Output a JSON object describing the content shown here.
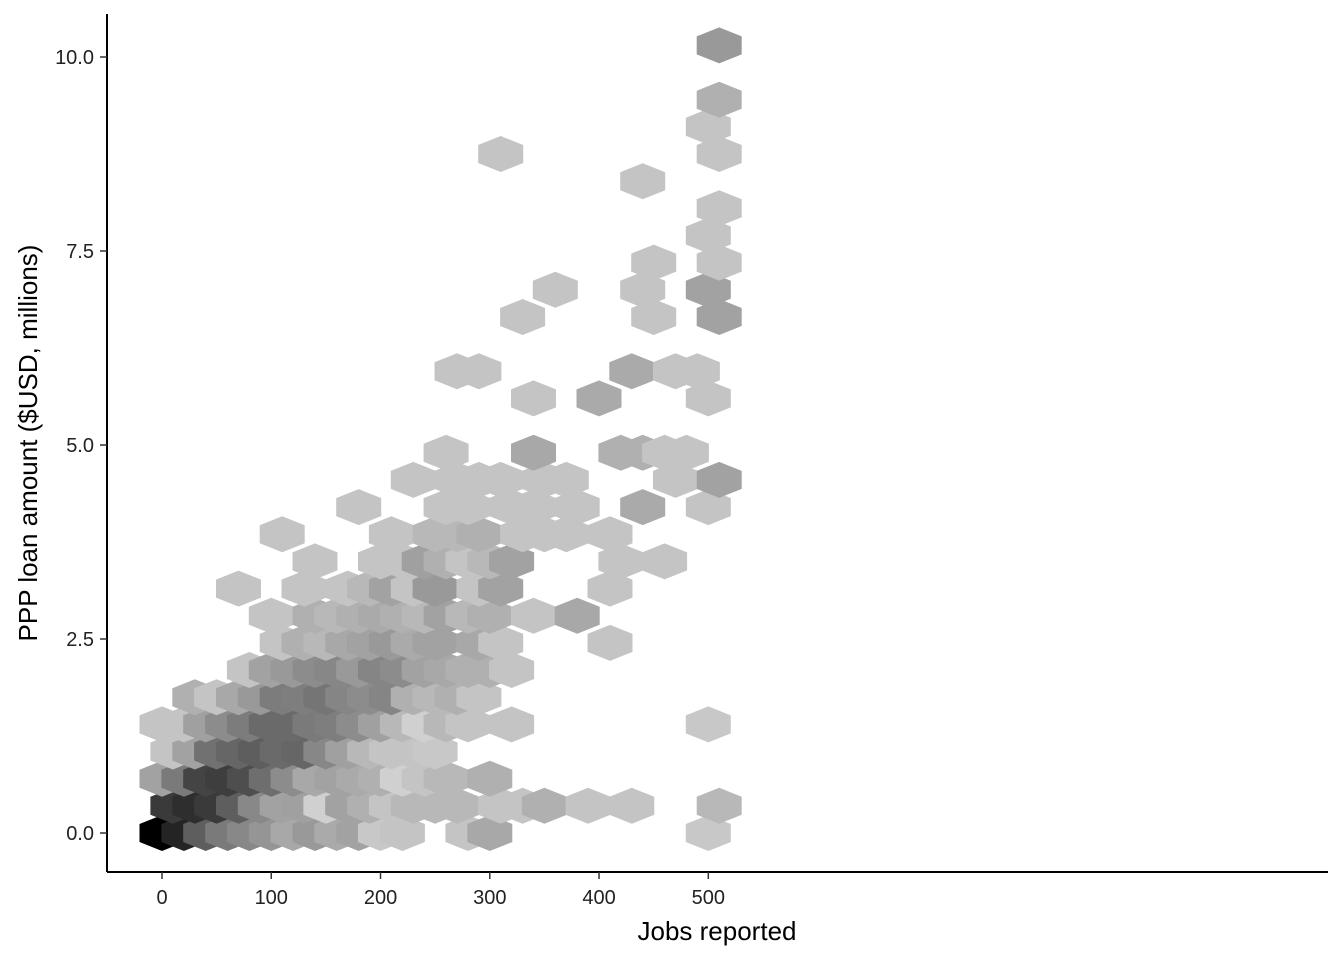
{
  "chart_data": {
    "type": "heatmap",
    "subtype": "hexbin",
    "title": "",
    "xlabel": "Jobs reported",
    "ylabel": "PPP loan amount ($USD, millions)",
    "xlim": [
      -25,
      535
    ],
    "ylim": [
      -0.5,
      10.6
    ],
    "x_ticks": [
      0,
      100,
      200,
      300,
      400,
      500
    ],
    "x_tick_labels": [
      "0",
      "100",
      "200",
      "300",
      "400",
      "500"
    ],
    "y_ticks": [
      0,
      2.5,
      5,
      7.5,
      10
    ],
    "y_tick_labels": [
      "0.0",
      "2.5",
      "5.0",
      "7.5",
      "10.0"
    ],
    "grid": false,
    "legend": "none",
    "color_scale": [
      "#c4c4c4",
      "#000000"
    ],
    "bins": [
      {
        "x": 0,
        "y": 0.0,
        "gray": "#000000"
      },
      {
        "x": 20,
        "y": 0.0,
        "gray": "#242424"
      },
      {
        "x": 40,
        "y": 0.0,
        "gray": "#5e5e5e"
      },
      {
        "x": 60,
        "y": 0.0,
        "gray": "#7a7a7a"
      },
      {
        "x": 80,
        "y": 0.0,
        "gray": "#888888"
      },
      {
        "x": 100,
        "y": 0.0,
        "gray": "#959595"
      },
      {
        "x": 120,
        "y": 0.0,
        "gray": "#a8a8a8"
      },
      {
        "x": 140,
        "y": 0.0,
        "gray": "#999999"
      },
      {
        "x": 160,
        "y": 0.0,
        "gray": "#aaaaaa"
      },
      {
        "x": 180,
        "y": 0.0,
        "gray": "#a2a2a2"
      },
      {
        "x": 200,
        "y": 0.0,
        "gray": "#c8c8c8"
      },
      {
        "x": 220,
        "y": 0.0,
        "gray": "#c4c4c4"
      },
      {
        "x": 280,
        "y": 0.0,
        "gray": "#c4c4c4"
      },
      {
        "x": 300,
        "y": 0.0,
        "gray": "#a8a8a8"
      },
      {
        "x": 500,
        "y": 0.0,
        "gray": "#c8c8c8"
      },
      {
        "x": 10,
        "y": 0.35,
        "gray": "#3a3a3a"
      },
      {
        "x": 30,
        "y": 0.35,
        "gray": "#2e2e2e"
      },
      {
        "x": 50,
        "y": 0.35,
        "gray": "#3a3a3a"
      },
      {
        "x": 70,
        "y": 0.35,
        "gray": "#5e5e5e"
      },
      {
        "x": 90,
        "y": 0.35,
        "gray": "#888888"
      },
      {
        "x": 110,
        "y": 0.35,
        "gray": "#a2a2a2"
      },
      {
        "x": 130,
        "y": 0.35,
        "gray": "#a0a0a0"
      },
      {
        "x": 150,
        "y": 0.35,
        "gray": "#d0d0d0"
      },
      {
        "x": 170,
        "y": 0.35,
        "gray": "#a2a2a2"
      },
      {
        "x": 190,
        "y": 0.35,
        "gray": "#b0b0b0"
      },
      {
        "x": 210,
        "y": 0.35,
        "gray": "#c4c4c4"
      },
      {
        "x": 230,
        "y": 0.35,
        "gray": "#b8b8b8"
      },
      {
        "x": 250,
        "y": 0.35,
        "gray": "#b8b8b8"
      },
      {
        "x": 270,
        "y": 0.35,
        "gray": "#b8b8b8"
      },
      {
        "x": 310,
        "y": 0.35,
        "gray": "#c4c4c4"
      },
      {
        "x": 330,
        "y": 0.35,
        "gray": "#c4c4c4"
      },
      {
        "x": 350,
        "y": 0.35,
        "gray": "#b0b0b0"
      },
      {
        "x": 390,
        "y": 0.35,
        "gray": "#c4c4c4"
      },
      {
        "x": 430,
        "y": 0.35,
        "gray": "#c4c4c4"
      },
      {
        "x": 510,
        "y": 0.35,
        "gray": "#b8b8b8"
      },
      {
        "x": 0,
        "y": 0.7,
        "gray": "#a2a2a2"
      },
      {
        "x": 20,
        "y": 0.7,
        "gray": "#7a7a7a"
      },
      {
        "x": 40,
        "y": 0.7,
        "gray": "#444444"
      },
      {
        "x": 60,
        "y": 0.7,
        "gray": "#3e3e3e"
      },
      {
        "x": 80,
        "y": 0.7,
        "gray": "#4e4e4e"
      },
      {
        "x": 100,
        "y": 0.7,
        "gray": "#6e6e6e"
      },
      {
        "x": 120,
        "y": 0.7,
        "gray": "#8c8c8c"
      },
      {
        "x": 140,
        "y": 0.7,
        "gray": "#a8a8a8"
      },
      {
        "x": 160,
        "y": 0.7,
        "gray": "#a2a2a2"
      },
      {
        "x": 180,
        "y": 0.7,
        "gray": "#aaaaaa"
      },
      {
        "x": 200,
        "y": 0.7,
        "gray": "#b0b0b0"
      },
      {
        "x": 220,
        "y": 0.7,
        "gray": "#d0d0d0"
      },
      {
        "x": 240,
        "y": 0.7,
        "gray": "#c4c4c4"
      },
      {
        "x": 260,
        "y": 0.7,
        "gray": "#b8b8b8"
      },
      {
        "x": 300,
        "y": 0.7,
        "gray": "#b0b0b0"
      },
      {
        "x": 10,
        "y": 1.05,
        "gray": "#c4c4c4"
      },
      {
        "x": 30,
        "y": 1.05,
        "gray": "#a2a2a2"
      },
      {
        "x": 50,
        "y": 1.05,
        "gray": "#717171"
      },
      {
        "x": 70,
        "y": 1.05,
        "gray": "#666666"
      },
      {
        "x": 90,
        "y": 1.05,
        "gray": "#5e5e5e"
      },
      {
        "x": 110,
        "y": 1.05,
        "gray": "#6a6a6a"
      },
      {
        "x": 130,
        "y": 1.05,
        "gray": "#666666"
      },
      {
        "x": 150,
        "y": 1.05,
        "gray": "#878787"
      },
      {
        "x": 170,
        "y": 1.05,
        "gray": "#a0a0a0"
      },
      {
        "x": 190,
        "y": 1.05,
        "gray": "#b8b8b8"
      },
      {
        "x": 210,
        "y": 1.05,
        "gray": "#c4c4c4"
      },
      {
        "x": 230,
        "y": 1.05,
        "gray": "#c4c4c4"
      },
      {
        "x": 250,
        "y": 1.05,
        "gray": "#c8c8c8"
      },
      {
        "x": 0,
        "y": 1.4,
        "gray": "#c4c4c4"
      },
      {
        "x": 20,
        "y": 1.4,
        "gray": "#c4c4c4"
      },
      {
        "x": 40,
        "y": 1.4,
        "gray": "#a0a0a0"
      },
      {
        "x": 60,
        "y": 1.4,
        "gray": "#8c8c8c"
      },
      {
        "x": 80,
        "y": 1.4,
        "gray": "#7c7c7c"
      },
      {
        "x": 100,
        "y": 1.4,
        "gray": "#6a6a6a"
      },
      {
        "x": 120,
        "y": 1.4,
        "gray": "#6a6a6a"
      },
      {
        "x": 140,
        "y": 1.4,
        "gray": "#7a7a7a"
      },
      {
        "x": 160,
        "y": 1.4,
        "gray": "#7e7e7e"
      },
      {
        "x": 180,
        "y": 1.4,
        "gray": "#8c8c8c"
      },
      {
        "x": 200,
        "y": 1.4,
        "gray": "#a0a0a0"
      },
      {
        "x": 220,
        "y": 1.4,
        "gray": "#b8b8b8"
      },
      {
        "x": 240,
        "y": 1.4,
        "gray": "#d0d0d0"
      },
      {
        "x": 260,
        "y": 1.4,
        "gray": "#b8b8b8"
      },
      {
        "x": 280,
        "y": 1.4,
        "gray": "#c4c4c4"
      },
      {
        "x": 320,
        "y": 1.4,
        "gray": "#c4c4c4"
      },
      {
        "x": 500,
        "y": 1.4,
        "gray": "#c8c8c8"
      },
      {
        "x": 30,
        "y": 1.75,
        "gray": "#b0b0b0"
      },
      {
        "x": 50,
        "y": 1.75,
        "gray": "#c4c4c4"
      },
      {
        "x": 70,
        "y": 1.75,
        "gray": "#a8a8a8"
      },
      {
        "x": 90,
        "y": 1.75,
        "gray": "#999999"
      },
      {
        "x": 110,
        "y": 1.75,
        "gray": "#7c7c7c"
      },
      {
        "x": 130,
        "y": 1.75,
        "gray": "#7e7e7e"
      },
      {
        "x": 150,
        "y": 1.75,
        "gray": "#757575"
      },
      {
        "x": 170,
        "y": 1.75,
        "gray": "#858585"
      },
      {
        "x": 190,
        "y": 1.75,
        "gray": "#8c8c8c"
      },
      {
        "x": 210,
        "y": 1.75,
        "gray": "#858585"
      },
      {
        "x": 230,
        "y": 1.75,
        "gray": "#b0b0b0"
      },
      {
        "x": 250,
        "y": 1.75,
        "gray": "#b8b8b8"
      },
      {
        "x": 270,
        "y": 1.75,
        "gray": "#b0b0b0"
      },
      {
        "x": 290,
        "y": 1.75,
        "gray": "#c4c4c4"
      },
      {
        "x": 80,
        "y": 2.1,
        "gray": "#c4c4c4"
      },
      {
        "x": 100,
        "y": 2.1,
        "gray": "#a2a2a2"
      },
      {
        "x": 120,
        "y": 2.1,
        "gray": "#999999"
      },
      {
        "x": 140,
        "y": 2.1,
        "gray": "#8c8c8c"
      },
      {
        "x": 160,
        "y": 2.1,
        "gray": "#878787"
      },
      {
        "x": 180,
        "y": 2.1,
        "gray": "#999999"
      },
      {
        "x": 200,
        "y": 2.1,
        "gray": "#858585"
      },
      {
        "x": 220,
        "y": 2.1,
        "gray": "#8c8c8c"
      },
      {
        "x": 240,
        "y": 2.1,
        "gray": "#a2a2a2"
      },
      {
        "x": 260,
        "y": 2.1,
        "gray": "#a8a8a8"
      },
      {
        "x": 280,
        "y": 2.1,
        "gray": "#b0b0b0"
      },
      {
        "x": 300,
        "y": 2.1,
        "gray": "#b0b0b0"
      },
      {
        "x": 320,
        "y": 2.1,
        "gray": "#c4c4c4"
      },
      {
        "x": 110,
        "y": 2.45,
        "gray": "#c4c4c4"
      },
      {
        "x": 130,
        "y": 2.45,
        "gray": "#b0b0b0"
      },
      {
        "x": 150,
        "y": 2.45,
        "gray": "#b8b8b8"
      },
      {
        "x": 170,
        "y": 2.45,
        "gray": "#a8a8a8"
      },
      {
        "x": 190,
        "y": 2.45,
        "gray": "#a2a2a2"
      },
      {
        "x": 210,
        "y": 2.45,
        "gray": "#999999"
      },
      {
        "x": 230,
        "y": 2.45,
        "gray": "#aaaaaa"
      },
      {
        "x": 250,
        "y": 2.45,
        "gray": "#a2a2a2"
      },
      {
        "x": 290,
        "y": 2.45,
        "gray": "#a8a8a8"
      },
      {
        "x": 310,
        "y": 2.45,
        "gray": "#c4c4c4"
      },
      {
        "x": 410,
        "y": 2.45,
        "gray": "#c4c4c4"
      },
      {
        "x": 100,
        "y": 2.8,
        "gray": "#c4c4c4"
      },
      {
        "x": 140,
        "y": 2.8,
        "gray": "#b0b0b0"
      },
      {
        "x": 160,
        "y": 2.8,
        "gray": "#b8b8b8"
      },
      {
        "x": 180,
        "y": 2.8,
        "gray": "#b0b0b0"
      },
      {
        "x": 200,
        "y": 2.8,
        "gray": "#aaaaaa"
      },
      {
        "x": 220,
        "y": 2.8,
        "gray": "#b0b0b0"
      },
      {
        "x": 240,
        "y": 2.8,
        "gray": "#b8b8b8"
      },
      {
        "x": 260,
        "y": 2.8,
        "gray": "#a2a2a2"
      },
      {
        "x": 280,
        "y": 2.8,
        "gray": "#b8b8b8"
      },
      {
        "x": 300,
        "y": 2.8,
        "gray": "#b0b0b0"
      },
      {
        "x": 340,
        "y": 2.8,
        "gray": "#c4c4c4"
      },
      {
        "x": 380,
        "y": 2.8,
        "gray": "#a8a8a8"
      },
      {
        "x": 70,
        "y": 3.15,
        "gray": "#c4c4c4"
      },
      {
        "x": 130,
        "y": 3.15,
        "gray": "#c4c4c4"
      },
      {
        "x": 170,
        "y": 3.15,
        "gray": "#c4c4c4"
      },
      {
        "x": 190,
        "y": 3.15,
        "gray": "#b8b8b8"
      },
      {
        "x": 210,
        "y": 3.15,
        "gray": "#a2a2a2"
      },
      {
        "x": 230,
        "y": 3.15,
        "gray": "#c4c4c4"
      },
      {
        "x": 250,
        "y": 3.15,
        "gray": "#999999"
      },
      {
        "x": 290,
        "y": 3.15,
        "gray": "#c4c4c4"
      },
      {
        "x": 310,
        "y": 3.15,
        "gray": "#a2a2a2"
      },
      {
        "x": 410,
        "y": 3.15,
        "gray": "#c4c4c4"
      },
      {
        "x": 140,
        "y": 3.5,
        "gray": "#c4c4c4"
      },
      {
        "x": 200,
        "y": 3.5,
        "gray": "#c4c4c4"
      },
      {
        "x": 220,
        "y": 3.5,
        "gray": "#c4c4c4"
      },
      {
        "x": 240,
        "y": 3.5,
        "gray": "#a0a0a0"
      },
      {
        "x": 260,
        "y": 3.5,
        "gray": "#b0b0b0"
      },
      {
        "x": 280,
        "y": 3.5,
        "gray": "#c4c4c4"
      },
      {
        "x": 300,
        "y": 3.5,
        "gray": "#b8b8b8"
      },
      {
        "x": 320,
        "y": 3.5,
        "gray": "#a2a2a2"
      },
      {
        "x": 420,
        "y": 3.5,
        "gray": "#c4c4c4"
      },
      {
        "x": 460,
        "y": 3.5,
        "gray": "#c4c4c4"
      },
      {
        "x": 110,
        "y": 3.85,
        "gray": "#c4c4c4"
      },
      {
        "x": 210,
        "y": 3.85,
        "gray": "#c4c4c4"
      },
      {
        "x": 250,
        "y": 3.85,
        "gray": "#b8b8b8"
      },
      {
        "x": 270,
        "y": 3.85,
        "gray": "#b8b8b8"
      },
      {
        "x": 290,
        "y": 3.85,
        "gray": "#b0b0b0"
      },
      {
        "x": 330,
        "y": 3.85,
        "gray": "#c4c4c4"
      },
      {
        "x": 350,
        "y": 3.85,
        "gray": "#c4c4c4"
      },
      {
        "x": 370,
        "y": 3.85,
        "gray": "#c4c4c4"
      },
      {
        "x": 410,
        "y": 3.85,
        "gray": "#c4c4c4"
      },
      {
        "x": 180,
        "y": 4.2,
        "gray": "#c4c4c4"
      },
      {
        "x": 260,
        "y": 4.2,
        "gray": "#c4c4c4"
      },
      {
        "x": 280,
        "y": 4.2,
        "gray": "#c4c4c4"
      },
      {
        "x": 320,
        "y": 4.2,
        "gray": "#c4c4c4"
      },
      {
        "x": 340,
        "y": 4.2,
        "gray": "#c4c4c4"
      },
      {
        "x": 380,
        "y": 4.2,
        "gray": "#c4c4c4"
      },
      {
        "x": 440,
        "y": 4.2,
        "gray": "#aaaaaa"
      },
      {
        "x": 500,
        "y": 4.2,
        "gray": "#c4c4c4"
      },
      {
        "x": 230,
        "y": 4.55,
        "gray": "#c4c4c4"
      },
      {
        "x": 270,
        "y": 4.55,
        "gray": "#c4c4c4"
      },
      {
        "x": 290,
        "y": 4.55,
        "gray": "#c4c4c4"
      },
      {
        "x": 310,
        "y": 4.55,
        "gray": "#c4c4c4"
      },
      {
        "x": 350,
        "y": 4.55,
        "gray": "#c4c4c4"
      },
      {
        "x": 370,
        "y": 4.55,
        "gray": "#c4c4c4"
      },
      {
        "x": 470,
        "y": 4.55,
        "gray": "#c4c4c4"
      },
      {
        "x": 510,
        "y": 4.55,
        "gray": "#a2a2a2"
      },
      {
        "x": 260,
        "y": 4.9,
        "gray": "#c4c4c4"
      },
      {
        "x": 340,
        "y": 4.9,
        "gray": "#a8a8a8"
      },
      {
        "x": 420,
        "y": 4.9,
        "gray": "#b0b0b0"
      },
      {
        "x": 440,
        "y": 4.9,
        "gray": "#b0b0b0"
      },
      {
        "x": 460,
        "y": 4.9,
        "gray": "#c4c4c4"
      },
      {
        "x": 480,
        "y": 4.9,
        "gray": "#c4c4c4"
      },
      {
        "x": 400,
        "y": 5.6,
        "gray": "#aaaaaa"
      },
      {
        "x": 340,
        "y": 5.6,
        "gray": "#c4c4c4"
      },
      {
        "x": 500,
        "y": 5.6,
        "gray": "#c4c4c4"
      },
      {
        "x": 270,
        "y": 5.95,
        "gray": "#c4c4c4"
      },
      {
        "x": 290,
        "y": 5.95,
        "gray": "#c4c4c4"
      },
      {
        "x": 430,
        "y": 5.95,
        "gray": "#aaaaaa"
      },
      {
        "x": 470,
        "y": 5.95,
        "gray": "#c4c4c4"
      },
      {
        "x": 490,
        "y": 5.95,
        "gray": "#c4c4c4"
      },
      {
        "x": 330,
        "y": 6.65,
        "gray": "#c4c4c4"
      },
      {
        "x": 450,
        "y": 6.65,
        "gray": "#c4c4c4"
      },
      {
        "x": 510,
        "y": 6.65,
        "gray": "#a2a2a2"
      },
      {
        "x": 360,
        "y": 7.0,
        "gray": "#c4c4c4"
      },
      {
        "x": 440,
        "y": 7.0,
        "gray": "#c4c4c4"
      },
      {
        "x": 500,
        "y": 7.0,
        "gray": "#a2a2a2"
      },
      {
        "x": 450,
        "y": 7.35,
        "gray": "#c4c4c4"
      },
      {
        "x": 510,
        "y": 7.35,
        "gray": "#c4c4c4"
      },
      {
        "x": 500,
        "y": 7.7,
        "gray": "#c4c4c4"
      },
      {
        "x": 510,
        "y": 8.05,
        "gray": "#c4c4c4"
      },
      {
        "x": 440,
        "y": 8.4,
        "gray": "#c4c4c4"
      },
      {
        "x": 310,
        "y": 8.75,
        "gray": "#c4c4c4"
      },
      {
        "x": 510,
        "y": 8.75,
        "gray": "#c4c4c4"
      },
      {
        "x": 500,
        "y": 9.1,
        "gray": "#c4c4c4"
      },
      {
        "x": 510,
        "y": 9.45,
        "gray": "#b0b0b0"
      },
      {
        "x": 510,
        "y": 10.15,
        "gray": "#999999"
      }
    ]
  }
}
